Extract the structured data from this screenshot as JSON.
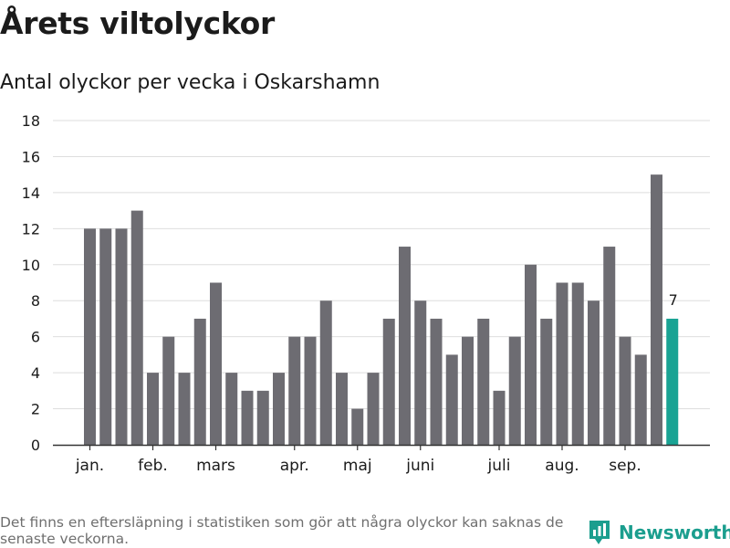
{
  "title": "Årets viltolyckor",
  "subtitle": "Antal olyckor per vecka i Oskarshamn",
  "footnote": "Det finns en eftersläpning i statistiken som gör att några olyckor kan saknas de senaste veckorna.",
  "brand": {
    "name": "Newsworthy",
    "icon": "newsworthy-logo-icon",
    "color": "#1b9e8e"
  },
  "colors": {
    "bar": "#6d6c72",
    "highlight": "#19a394",
    "grid": "#dedede",
    "axis": "#333333"
  },
  "chart_data": {
    "type": "bar",
    "title": "Årets viltolyckor",
    "subtitle": "Antal olyckor per vecka i Oskarshamn",
    "xlabel": "",
    "ylabel": "",
    "ylim": [
      0,
      18
    ],
    "yticks": [
      0,
      2,
      4,
      6,
      8,
      10,
      12,
      14,
      16,
      18
    ],
    "grid": true,
    "month_labels": [
      {
        "label": "jan.",
        "week": 1
      },
      {
        "label": "feb.",
        "week": 5
      },
      {
        "label": "mars",
        "week": 9
      },
      {
        "label": "apr.",
        "week": 14
      },
      {
        "label": "maj",
        "week": 18
      },
      {
        "label": "juni",
        "week": 22
      },
      {
        "label": "juli",
        "week": 27
      },
      {
        "label": "aug.",
        "week": 31
      },
      {
        "label": "sep.",
        "week": 35
      }
    ],
    "weeks": [
      1,
      2,
      3,
      4,
      5,
      6,
      7,
      8,
      9,
      10,
      11,
      12,
      13,
      14,
      15,
      16,
      17,
      18,
      19,
      20,
      21,
      22,
      23,
      24,
      25,
      26,
      27,
      28,
      29,
      30,
      31,
      32,
      33,
      34,
      35,
      36,
      37,
      38
    ],
    "values": [
      12,
      12,
      12,
      13,
      4,
      6,
      4,
      7,
      9,
      4,
      3,
      3,
      4,
      6,
      6,
      8,
      4,
      2,
      4,
      7,
      11,
      8,
      7,
      5,
      6,
      7,
      3,
      6,
      10,
      7,
      9,
      9,
      8,
      11,
      6,
      5,
      15,
      7
    ],
    "highlight_index": 37,
    "highlight_label": "7"
  }
}
